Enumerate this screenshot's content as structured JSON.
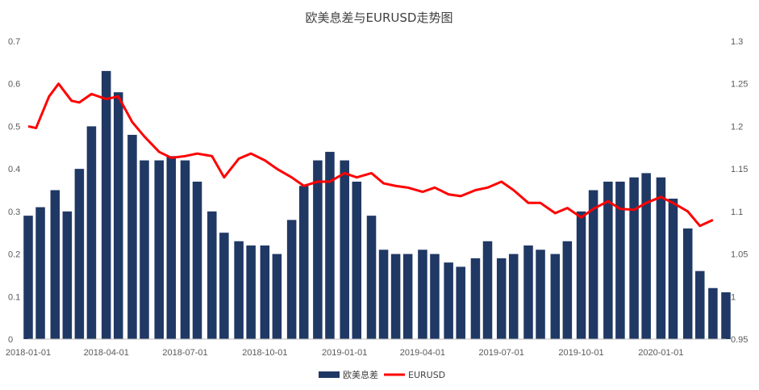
{
  "chart_data": {
    "type": "bar+line",
    "title": "欧美息差与EURUSD走势图",
    "x_axis": {
      "type": "date",
      "range": [
        "2018-01-01",
        "2020-03-16"
      ],
      "tick_labels": [
        "2018-01-01",
        "2018-04-01",
        "2018-07-01",
        "2018-10-01",
        "2019-01-01",
        "2019-04-01",
        "2019-07-01",
        "2019-10-01",
        "2020-01-01"
      ]
    },
    "y_axis_left": {
      "range": [
        0,
        0.7
      ],
      "tick_labels": [
        "0",
        "0.1",
        "0.2",
        "0.3",
        "0.4",
        "0.5",
        "0.6",
        "0.7"
      ]
    },
    "y_axis_right": {
      "range": [
        0.95,
        1.3
      ],
      "tick_labels": [
        "0.95",
        "1",
        "1.05",
        "1.1",
        "1.15",
        "1.2",
        "1.25",
        "1.3"
      ]
    },
    "grid": false,
    "legend_position": "bottom",
    "series": [
      {
        "name": "欧美息差",
        "type": "bar",
        "axis": "left",
        "color": "#203864",
        "points": [
          [
            "2018-01-01",
            0.29
          ],
          [
            "2018-01-15",
            0.31
          ],
          [
            "2018-02-01",
            0.35
          ],
          [
            "2018-02-15",
            0.3
          ],
          [
            "2018-03-01",
            0.4
          ],
          [
            "2018-03-15",
            0.5
          ],
          [
            "2018-04-01",
            0.63
          ],
          [
            "2018-04-15",
            0.58
          ],
          [
            "2018-05-01",
            0.48
          ],
          [
            "2018-05-15",
            0.42
          ],
          [
            "2018-06-01",
            0.42
          ],
          [
            "2018-06-15",
            0.43
          ],
          [
            "2018-07-01",
            0.42
          ],
          [
            "2018-07-15",
            0.37
          ],
          [
            "2018-08-01",
            0.3
          ],
          [
            "2018-08-15",
            0.25
          ],
          [
            "2018-09-01",
            0.23
          ],
          [
            "2018-09-15",
            0.22
          ],
          [
            "2018-10-01",
            0.22
          ],
          [
            "2018-10-15",
            0.2
          ],
          [
            "2018-11-01",
            0.28
          ],
          [
            "2018-11-15",
            0.36
          ],
          [
            "2018-12-01",
            0.42
          ],
          [
            "2018-12-15",
            0.44
          ],
          [
            "2019-01-01",
            0.42
          ],
          [
            "2019-01-15",
            0.37
          ],
          [
            "2019-02-01",
            0.29
          ],
          [
            "2019-02-15",
            0.21
          ],
          [
            "2019-03-01",
            0.2
          ],
          [
            "2019-03-15",
            0.2
          ],
          [
            "2019-04-01",
            0.21
          ],
          [
            "2019-04-15",
            0.2
          ],
          [
            "2019-05-01",
            0.18
          ],
          [
            "2019-05-15",
            0.17
          ],
          [
            "2019-06-01",
            0.19
          ],
          [
            "2019-06-15",
            0.23
          ],
          [
            "2019-07-01",
            0.19
          ],
          [
            "2019-07-15",
            0.2
          ],
          [
            "2019-08-01",
            0.22
          ],
          [
            "2019-08-15",
            0.21
          ],
          [
            "2019-09-01",
            0.2
          ],
          [
            "2019-09-15",
            0.23
          ],
          [
            "2019-10-01",
            0.3
          ],
          [
            "2019-10-15",
            0.35
          ],
          [
            "2019-11-01",
            0.37
          ],
          [
            "2019-11-15",
            0.37
          ],
          [
            "2019-12-01",
            0.38
          ],
          [
            "2019-12-15",
            0.39
          ],
          [
            "2020-01-01",
            0.38
          ],
          [
            "2020-01-15",
            0.33
          ],
          [
            "2020-02-01",
            0.26
          ],
          [
            "2020-02-15",
            0.16
          ],
          [
            "2020-03-01",
            0.12
          ],
          [
            "2020-03-16",
            0.11
          ]
        ]
      },
      {
        "name": "EURUSD",
        "type": "line",
        "axis": "right",
        "color": "#ff0000",
        "points": [
          [
            "2018-01-01",
            1.2
          ],
          [
            "2018-01-10",
            1.198
          ],
          [
            "2018-01-25",
            1.235
          ],
          [
            "2018-02-05",
            1.25
          ],
          [
            "2018-02-20",
            1.23
          ],
          [
            "2018-03-01",
            1.228
          ],
          [
            "2018-03-15",
            1.238
          ],
          [
            "2018-04-01",
            1.232
          ],
          [
            "2018-04-15",
            1.235
          ],
          [
            "2018-05-01",
            1.205
          ],
          [
            "2018-05-15",
            1.188
          ],
          [
            "2018-06-01",
            1.17
          ],
          [
            "2018-06-15",
            1.163
          ],
          [
            "2018-07-01",
            1.165
          ],
          [
            "2018-07-15",
            1.168
          ],
          [
            "2018-08-01",
            1.165
          ],
          [
            "2018-08-15",
            1.14
          ],
          [
            "2018-09-01",
            1.162
          ],
          [
            "2018-09-15",
            1.168
          ],
          [
            "2018-10-01",
            1.16
          ],
          [
            "2018-10-15",
            1.15
          ],
          [
            "2018-11-01",
            1.14
          ],
          [
            "2018-11-15",
            1.13
          ],
          [
            "2018-12-01",
            1.135
          ],
          [
            "2018-12-15",
            1.135
          ],
          [
            "2019-01-01",
            1.145
          ],
          [
            "2019-01-15",
            1.14
          ],
          [
            "2019-02-01",
            1.145
          ],
          [
            "2019-02-15",
            1.133
          ],
          [
            "2019-03-01",
            1.13
          ],
          [
            "2019-03-15",
            1.128
          ],
          [
            "2019-04-01",
            1.123
          ],
          [
            "2019-04-15",
            1.128
          ],
          [
            "2019-05-01",
            1.12
          ],
          [
            "2019-05-15",
            1.118
          ],
          [
            "2019-06-01",
            1.125
          ],
          [
            "2019-06-15",
            1.128
          ],
          [
            "2019-07-01",
            1.135
          ],
          [
            "2019-07-15",
            1.125
          ],
          [
            "2019-08-01",
            1.11
          ],
          [
            "2019-08-15",
            1.11
          ],
          [
            "2019-09-01",
            1.098
          ],
          [
            "2019-09-15",
            1.104
          ],
          [
            "2019-10-01",
            1.093
          ],
          [
            "2019-10-15",
            1.103
          ],
          [
            "2019-11-01",
            1.112
          ],
          [
            "2019-11-15",
            1.103
          ],
          [
            "2019-12-01",
            1.102
          ],
          [
            "2019-12-15",
            1.11
          ],
          [
            "2020-01-01",
            1.117
          ],
          [
            "2020-01-15",
            1.11
          ],
          [
            "2020-02-01",
            1.1
          ],
          [
            "2020-02-15",
            1.083
          ],
          [
            "2020-03-01",
            1.09
          ]
        ]
      }
    ]
  }
}
